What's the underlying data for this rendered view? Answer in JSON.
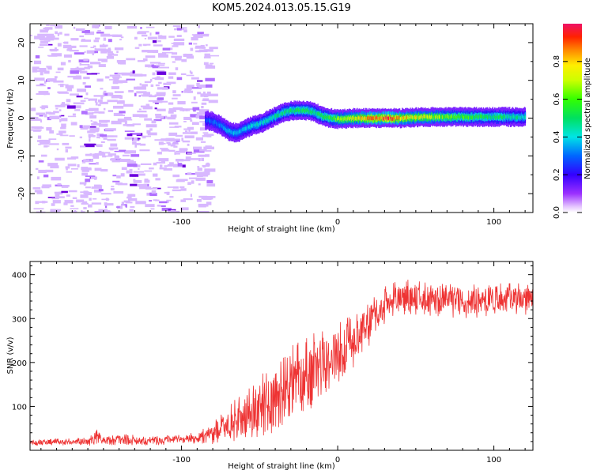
{
  "title": "KOM5.2024.013.05.15.G19",
  "chart_data": [
    {
      "type": "heatmap",
      "xlabel": "Height of straight line (km)",
      "ylabel": "Frequency (Hz)",
      "xlim": [
        -197,
        125
      ],
      "ylim": [
        -25,
        25
      ],
      "xticks": [
        -100,
        0,
        100
      ],
      "yticks": [
        -20,
        -10,
        0,
        10,
        20
      ],
      "grid": false,
      "colorbar": {
        "label": "Normalized spectral amplitude",
        "range": [
          0,
          1
        ],
        "ticks": [
          0.0,
          0.2,
          0.4,
          0.6,
          0.8
        ]
      },
      "ridge": [
        {
          "x": -85,
          "y": -0.5,
          "amp": 0.2
        },
        {
          "x": -80,
          "y": -1,
          "amp": 0.22
        },
        {
          "x": -75,
          "y": -2,
          "amp": 0.25
        },
        {
          "x": -70,
          "y": -3.5,
          "amp": 0.28
        },
        {
          "x": -65,
          "y": -4,
          "amp": 0.3
        },
        {
          "x": -60,
          "y": -3,
          "amp": 0.3
        },
        {
          "x": -55,
          "y": -2,
          "amp": 0.32
        },
        {
          "x": -50,
          "y": -1.5,
          "amp": 0.33
        },
        {
          "x": -45,
          "y": -0.5,
          "amp": 0.35
        },
        {
          "x": -40,
          "y": 0.5,
          "amp": 0.38
        },
        {
          "x": -35,
          "y": 1.5,
          "amp": 0.4
        },
        {
          "x": -30,
          "y": 2,
          "amp": 0.42
        },
        {
          "x": -25,
          "y": 2,
          "amp": 0.45
        },
        {
          "x": -20,
          "y": 2,
          "amp": 0.45
        },
        {
          "x": -15,
          "y": 1.5,
          "amp": 0.42
        },
        {
          "x": -10,
          "y": 0.5,
          "amp": 0.45
        },
        {
          "x": -5,
          "y": 0,
          "amp": 0.5
        },
        {
          "x": 0,
          "y": -0.3,
          "amp": 0.55
        },
        {
          "x": 10,
          "y": 0,
          "amp": 0.65
        },
        {
          "x": 20,
          "y": 0,
          "amp": 0.75
        },
        {
          "x": 30,
          "y": 0,
          "amp": 0.85
        },
        {
          "x": 40,
          "y": 0,
          "amp": 0.75
        },
        {
          "x": 50,
          "y": 0.2,
          "amp": 0.65
        },
        {
          "x": 60,
          "y": 0.3,
          "amp": 0.6
        },
        {
          "x": 70,
          "y": 0.3,
          "amp": 0.55
        },
        {
          "x": 80,
          "y": 0.3,
          "amp": 0.5
        },
        {
          "x": 90,
          "y": 0.3,
          "amp": 0.45
        },
        {
          "x": 100,
          "y": 0.3,
          "amp": 0.45
        },
        {
          "x": 110,
          "y": 0.3,
          "amp": 0.4
        },
        {
          "x": 120,
          "y": 0.3,
          "amp": 0.35
        }
      ]
    },
    {
      "type": "line",
      "xlabel": "Height of straight line (km)",
      "ylabel": "SNR (v/v)",
      "xlim": [
        -197,
        125
      ],
      "ylim": [
        0,
        430
      ],
      "xticks": [
        -100,
        0,
        100
      ],
      "yticks": [
        100,
        200,
        300,
        400
      ],
      "grid": false,
      "color": "#ee3333",
      "envelope": [
        {
          "x": -197,
          "mean": 18,
          "spread": 8
        },
        {
          "x": -160,
          "mean": 20,
          "spread": 10
        },
        {
          "x": -155,
          "mean": 30,
          "spread": 25
        },
        {
          "x": -150,
          "mean": 22,
          "spread": 12
        },
        {
          "x": -140,
          "mean": 25,
          "spread": 15
        },
        {
          "x": -120,
          "mean": 22,
          "spread": 12
        },
        {
          "x": -100,
          "mean": 25,
          "spread": 12
        },
        {
          "x": -90,
          "mean": 28,
          "spread": 15
        },
        {
          "x": -80,
          "mean": 40,
          "spread": 30
        },
        {
          "x": -70,
          "mean": 60,
          "spread": 50
        },
        {
          "x": -60,
          "mean": 75,
          "spread": 60
        },
        {
          "x": -50,
          "mean": 100,
          "spread": 80
        },
        {
          "x": -40,
          "mean": 120,
          "spread": 90
        },
        {
          "x": -30,
          "mean": 150,
          "spread": 100
        },
        {
          "x": -20,
          "mean": 175,
          "spread": 100
        },
        {
          "x": -10,
          "mean": 200,
          "spread": 90
        },
        {
          "x": 0,
          "mean": 220,
          "spread": 80
        },
        {
          "x": 10,
          "mean": 250,
          "spread": 70
        },
        {
          "x": 20,
          "mean": 290,
          "spread": 60
        },
        {
          "x": 30,
          "mean": 330,
          "spread": 50
        },
        {
          "x": 40,
          "mean": 350,
          "spread": 45
        },
        {
          "x": 60,
          "mean": 345,
          "spread": 45
        },
        {
          "x": 80,
          "mean": 340,
          "spread": 45
        },
        {
          "x": 100,
          "mean": 340,
          "spread": 45
        },
        {
          "x": 125,
          "mean": 345,
          "spread": 40
        }
      ]
    }
  ]
}
